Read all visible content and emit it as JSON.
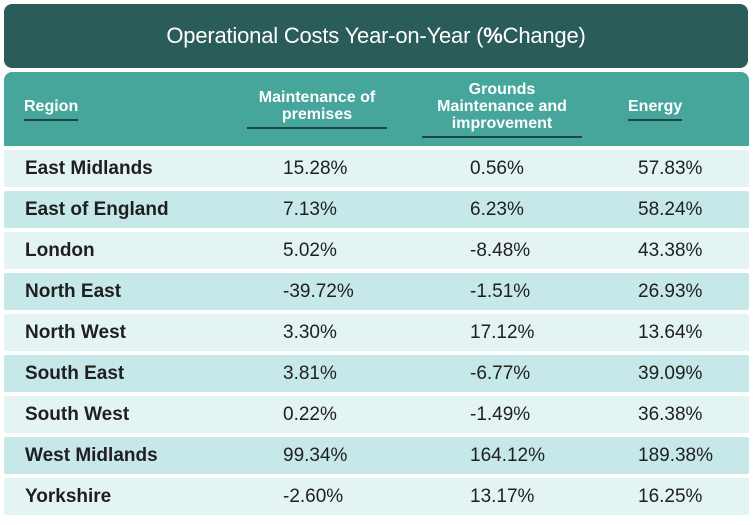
{
  "title": {
    "prefix": "Operational Costs Year-on-Year (",
    "bold": "%",
    "suffix": " Change)"
  },
  "header": {
    "region": "Region",
    "maintenance": "Maintenance of premises",
    "grounds": "Grounds Maintenance and improvement",
    "energy": "Energy"
  },
  "rows": [
    {
      "region": "East Midlands",
      "maintenance": "15.28%",
      "grounds": "0.56%",
      "energy": "57.83%"
    },
    {
      "region": "East of England",
      "maintenance": "7.13%",
      "grounds": "6.23%",
      "energy": "58.24%"
    },
    {
      "region": "London",
      "maintenance": "5.02%",
      "grounds": "-8.48%",
      "energy": "43.38%"
    },
    {
      "region": "North East",
      "maintenance": "-39.72%",
      "grounds": "-1.51%",
      "energy": "26.93%"
    },
    {
      "region": "North West",
      "maintenance": "3.30%",
      "grounds": "17.12%",
      "energy": "13.64%"
    },
    {
      "region": "South East",
      "maintenance": "3.81%",
      "grounds": "-6.77%",
      "energy": "39.09%"
    },
    {
      "region": "South West",
      "maintenance": "0.22%",
      "grounds": "-1.49%",
      "energy": "36.38%"
    },
    {
      "region": "West Midlands",
      "maintenance": "99.34%",
      "grounds": "164.12%",
      "energy": "189.38%"
    },
    {
      "region": "Yorkshire",
      "maintenance": "-2.60%",
      "grounds": "13.17%",
      "energy": "16.25%"
    }
  ],
  "colors": {
    "title_bg": "#2a5c59",
    "header_bg": "#47a69c",
    "row_light": "#e4f4f4",
    "row_dark": "#c6e8e8"
  }
}
